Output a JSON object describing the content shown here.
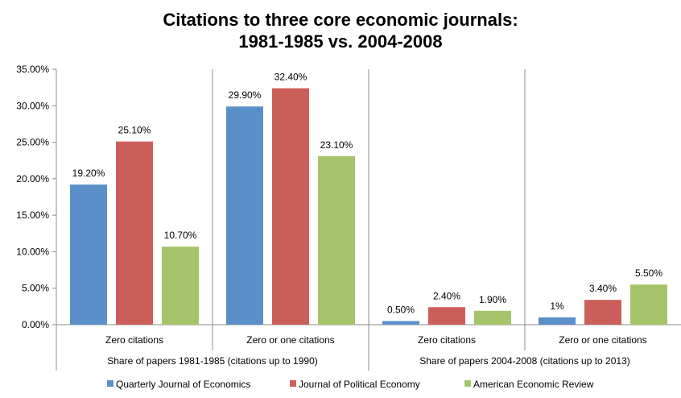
{
  "chart_data": {
    "type": "bar",
    "title_line1": "Citations to three core economic journals:",
    "title_line2": "1981-1985 vs. 2004-2008",
    "ylim": [
      0,
      35
    ],
    "yticks": [
      {
        "value": 0,
        "label": "0.00%"
      },
      {
        "value": 5,
        "label": "5.00%"
      },
      {
        "value": 10,
        "label": "10.00%"
      },
      {
        "value": 15,
        "label": "15.00%"
      },
      {
        "value": 20,
        "label": "20.00%"
      },
      {
        "value": 25,
        "label": "25.00%"
      },
      {
        "value": 30,
        "label": "30.00%"
      },
      {
        "value": 35,
        "label": "35.00%"
      }
    ],
    "groups": [
      {
        "label": "Share of papers 1981-1985 (citations up to 1990)",
        "categories": [
          "Zero citations",
          "Zero or one citations"
        ]
      },
      {
        "label": "Share of papers 2004-2008 (citations up to 2013)",
        "categories": [
          "Zero citations",
          "Zero or one citations"
        ]
      }
    ],
    "series": [
      {
        "name": "Quarterly Journal of Economics",
        "color": "#5B8FC9",
        "values": [
          19.2,
          29.9,
          0.5,
          1.0
        ],
        "labels": [
          "19.20%",
          "29.90%",
          "0.50%",
          "1%"
        ]
      },
      {
        "name": "Journal of Political Economy",
        "color": "#CC5F5A",
        "values": [
          25.1,
          32.4,
          2.4,
          3.4
        ],
        "labels": [
          "25.10%",
          "32.40%",
          "2.40%",
          "3.40%"
        ]
      },
      {
        "name": "American Economic Review",
        "color": "#A6C46A",
        "values": [
          10.7,
          23.1,
          1.9,
          5.5
        ],
        "labels": [
          "10.70%",
          "23.10%",
          "1.90%",
          "5.50%"
        ]
      }
    ],
    "grid": false,
    "legend": "bottom"
  }
}
